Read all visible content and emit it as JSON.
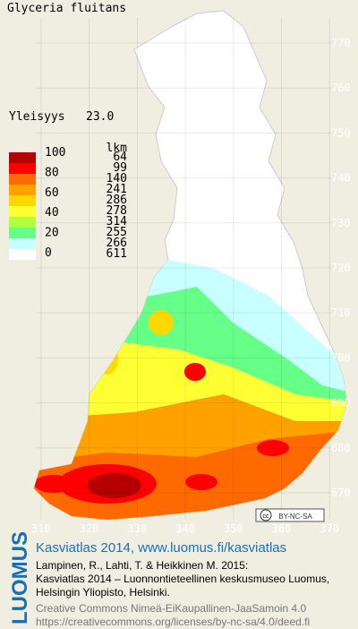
{
  "title": "Glyceria fluitans",
  "frequency": {
    "label": "Yleisyys",
    "value": "23.0"
  },
  "legend": {
    "header": "lkm",
    "scale_labels": [
      "100",
      "80",
      "60",
      "40",
      "20",
      "0"
    ],
    "colors": [
      "#b40000",
      "#ff0000",
      "#ff6a00",
      "#ffa200",
      "#ffd800",
      "#ffff33",
      "#b4ff3c",
      "#66ff88",
      "#c8ffff",
      "#ffffff"
    ],
    "counts": [
      "64",
      "99",
      "140",
      "241",
      "286",
      "278",
      "314",
      "255",
      "266",
      "611"
    ]
  },
  "grid": {
    "y_labels": [
      "770",
      "760",
      "750",
      "740",
      "730",
      "720",
      "710",
      "700",
      "690",
      "680",
      "670"
    ],
    "x_labels": [
      "310",
      "320",
      "330",
      "340",
      "350",
      "360",
      "370"
    ]
  },
  "license_badge": "BY-NC-SA",
  "footer": {
    "logo": "LUOMUS",
    "headline": "Kasviatlas 2014, www.luomus.fi/kasviatlas",
    "citation": [
      "Lampinen, R., Lahti, T. & Heikkinen M. 2015:",
      "Kasviatlas 2014 – Luonnontieteellinen keskusmuseo Luomus,",
      "Helsingin Yliopisto, Helsinki."
    ],
    "license": [
      "Creative Commons Nimeä-EiKaupallinen-JaaSamoin 4.0",
      "https://creativecommons.org/licenses/by-nc-sa/4.0/deed.fi"
    ]
  }
}
